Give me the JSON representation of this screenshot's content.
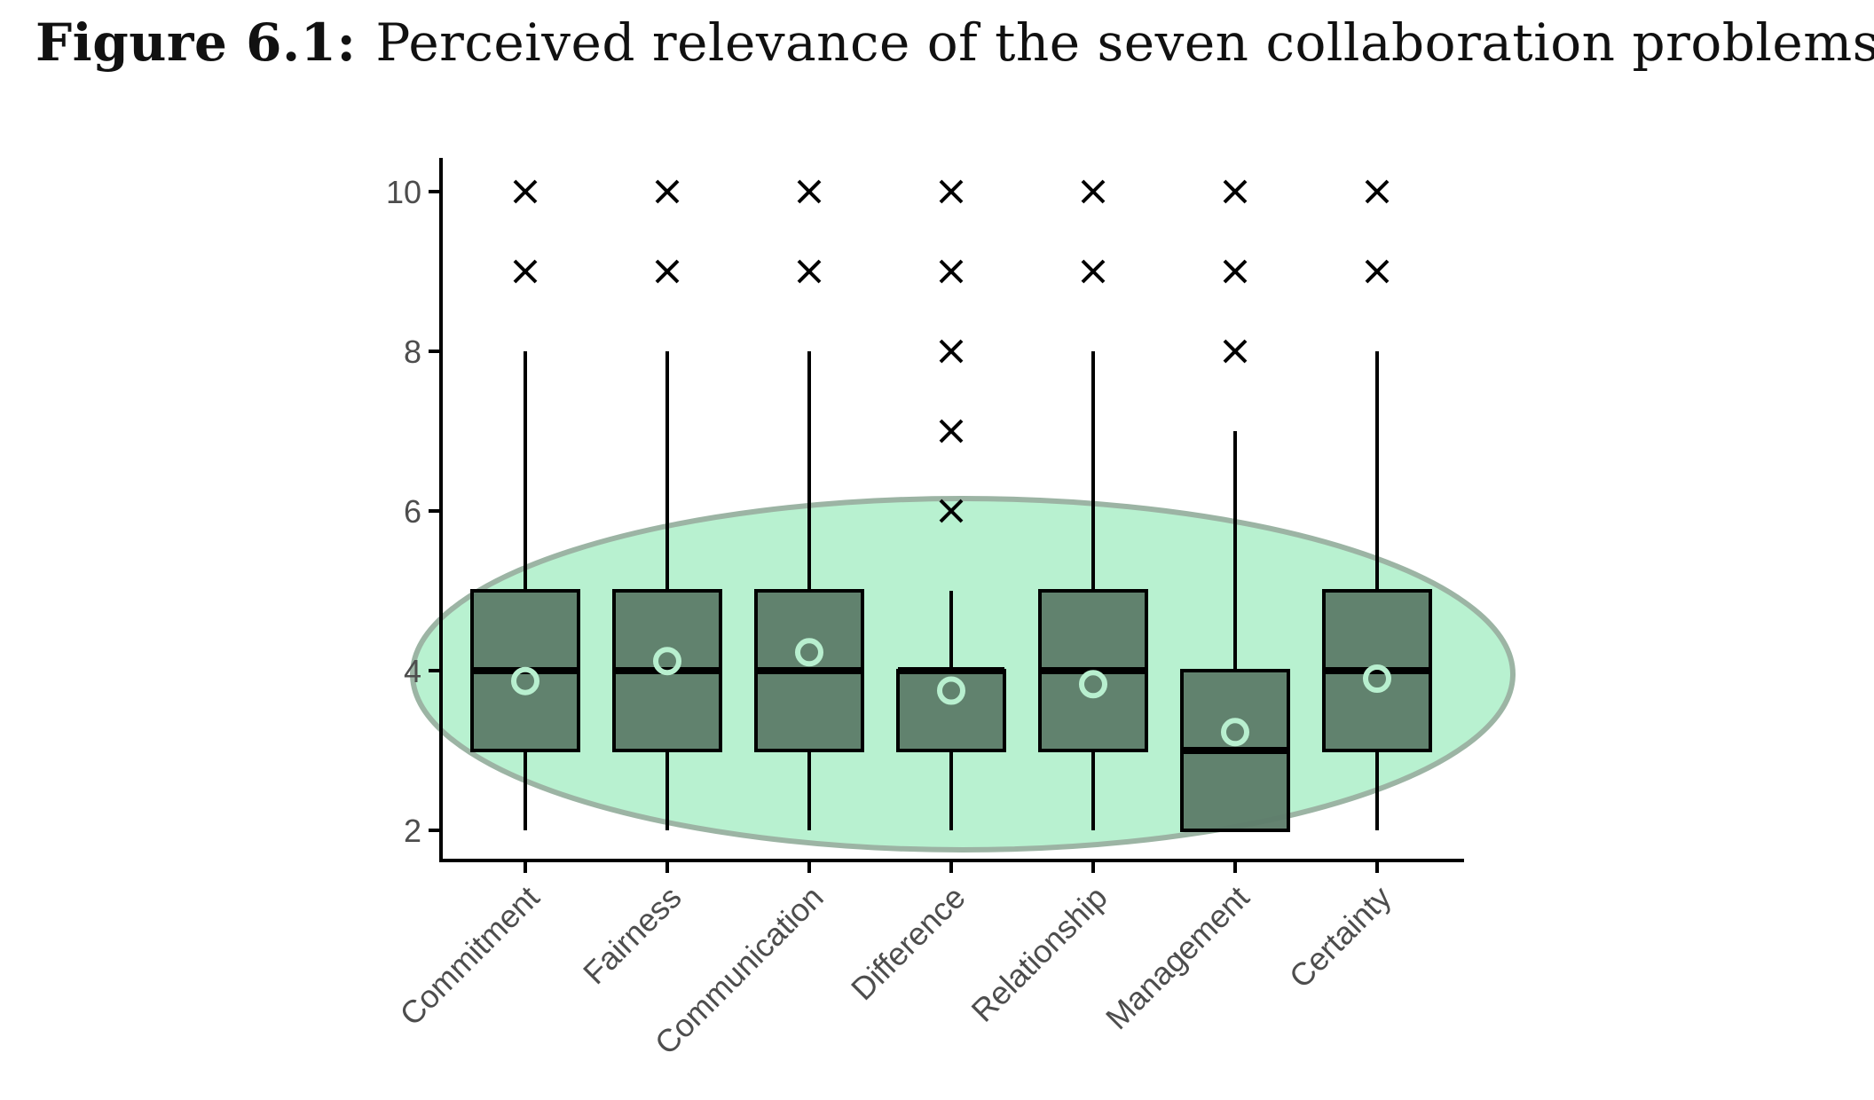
{
  "figure": {
    "label": "Figure 6.1:",
    "caption": "Perceived relevance of the seven collaboration problems"
  },
  "chart_data": {
    "type": "boxplot",
    "title": "",
    "xlabel": "",
    "ylabel": "",
    "ylim": [
      1.6,
      10.4
    ],
    "yticks": [
      2,
      4,
      6,
      8,
      10
    ],
    "grid": false,
    "legend": "none",
    "categories": [
      "Commitment",
      "Fairness",
      "Communication",
      "Difference",
      "Relationship",
      "Management",
      "Certainty"
    ],
    "boxes": [
      {
        "category": "Commitment",
        "whisker_low": 2,
        "q1": 3,
        "median": 4,
        "q3": 5,
        "whisker_high": 8,
        "mean": 3.87,
        "outliers": [
          9,
          10
        ]
      },
      {
        "category": "Fairness",
        "whisker_low": 2,
        "q1": 3,
        "median": 4,
        "q3": 5,
        "whisker_high": 8,
        "mean": 4.12,
        "outliers": [
          9,
          10
        ]
      },
      {
        "category": "Communication",
        "whisker_low": 2,
        "q1": 3,
        "median": 4,
        "q3": 5,
        "whisker_high": 8,
        "mean": 4.23,
        "outliers": [
          9,
          10
        ]
      },
      {
        "category": "Difference",
        "whisker_low": 2,
        "q1": 3,
        "median": 4,
        "q3": 4,
        "whisker_high": 5,
        "mean": 3.75,
        "outliers": [
          6,
          7,
          8,
          9,
          10
        ]
      },
      {
        "category": "Relationship",
        "whisker_low": 2,
        "q1": 3,
        "median": 4,
        "q3": 5,
        "whisker_high": 8,
        "mean": 3.83,
        "outliers": [
          9,
          10
        ]
      },
      {
        "category": "Management",
        "whisker_low": 2,
        "q1": 2,
        "median": 3,
        "q3": 4,
        "whisker_high": 7,
        "mean": 3.23,
        "outliers": [
          8,
          9,
          10
        ]
      },
      {
        "category": "Certainty",
        "whisker_low": 2,
        "q1": 3,
        "median": 4,
        "q3": 5,
        "whisker_high": 8,
        "mean": 3.9,
        "outliers": [
          9,
          10
        ]
      }
    ],
    "colors": {
      "box_fill": "#5e7d6a",
      "box_stroke": "#000000",
      "mean_marker": "#b8efcf",
      "highlight_fill": "#a8eec6",
      "highlight_stroke": "#9cb4a4",
      "axis": "#000000",
      "tick_text": "#4d4d4d"
    }
  }
}
